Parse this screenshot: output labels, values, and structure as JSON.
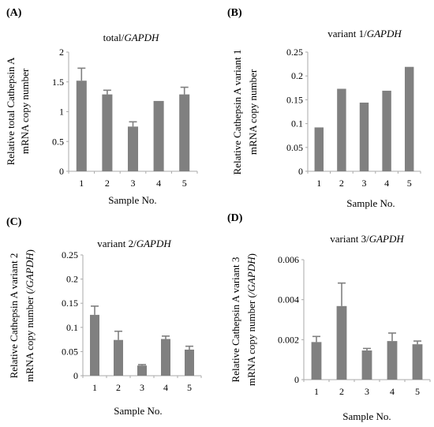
{
  "chart_data": [
    {
      "type": "bar",
      "panel_label": "(A)",
      "title_plain": "total/",
      "title_italic": "GAPDH",
      "ylabel_lines": [
        "Relative total Cathepsin A",
        "mRNA copy number"
      ],
      "ylabel_italic": "",
      "xlabel": "Sample No.",
      "categories": [
        "1",
        "2",
        "3",
        "4",
        "5"
      ],
      "values": [
        1.52,
        1.29,
        0.75,
        1.18,
        1.29
      ],
      "errors": [
        0.21,
        0.07,
        0.08,
        0.0,
        0.12
      ],
      "ylim": [
        0,
        2
      ],
      "yticks": [
        0,
        0.5,
        1,
        1.5,
        2
      ],
      "ytick_labels": [
        "0",
        "0.5",
        "1",
        "1.5",
        "2"
      ],
      "grid": false
    },
    {
      "type": "bar",
      "panel_label": "(B)",
      "title_plain": "variant 1/",
      "title_italic": "GAPDH",
      "ylabel_lines": [
        "Relative Cathepsin A variant 1",
        "mRNA copy number"
      ],
      "ylabel_italic": "",
      "xlabel": "Sample No.",
      "categories": [
        "1",
        "2",
        "3",
        "4",
        "5"
      ],
      "values": [
        0.092,
        0.173,
        0.144,
        0.169,
        0.219
      ],
      "errors": [
        0,
        0,
        0,
        0,
        0
      ],
      "ylim": [
        0,
        0.25
      ],
      "yticks": [
        0,
        0.05,
        0.1,
        0.15,
        0.2,
        0.25
      ],
      "ytick_labels": [
        "0",
        "0.05",
        "0.1",
        "0.15",
        "0.2",
        "0.25"
      ],
      "grid": false
    },
    {
      "type": "bar",
      "panel_label": "(C)",
      "title_plain": "variant 2/",
      "title_italic": "GAPDH",
      "ylabel_lines": [
        "Relative Cathepsin A variant 2",
        "mRNA copy number ("
      ],
      "ylabel_italic": "/GAPDH)",
      "xlabel": "Sample No.",
      "categories": [
        "1",
        "2",
        "3",
        "4",
        "5"
      ],
      "values": [
        0.126,
        0.074,
        0.021,
        0.076,
        0.054
      ],
      "errors": [
        0.018,
        0.018,
        0.002,
        0.006,
        0.007
      ],
      "ylim": [
        0,
        0.25
      ],
      "yticks": [
        0,
        0.05,
        0.1,
        0.15,
        0.2,
        0.25
      ],
      "ytick_labels": [
        "0",
        "0.05",
        "0.1",
        "0.15",
        "0.2",
        "0.25"
      ],
      "grid": false
    },
    {
      "type": "bar",
      "panel_label": "(D)",
      "title_plain": "variant 3/",
      "title_italic": "GAPDH",
      "ylabel_lines": [
        "Relative Cathepsin A variant 3",
        "mRNA copy number ("
      ],
      "ylabel_italic": "/GAPDH)",
      "xlabel": "Sample No.",
      "categories": [
        "1",
        "2",
        "3",
        "4",
        "5"
      ],
      "values": [
        0.00188,
        0.00368,
        0.00146,
        0.00193,
        0.00177
      ],
      "errors": [
        0.00028,
        0.00115,
        0.0001,
        0.0004,
        0.00016
      ],
      "ylim": [
        0,
        0.006
      ],
      "yticks": [
        0,
        0.002,
        0.004,
        0.006
      ],
      "ytick_labels": [
        "0",
        "0.002",
        "0.004",
        "0.006"
      ],
      "grid": false
    }
  ]
}
